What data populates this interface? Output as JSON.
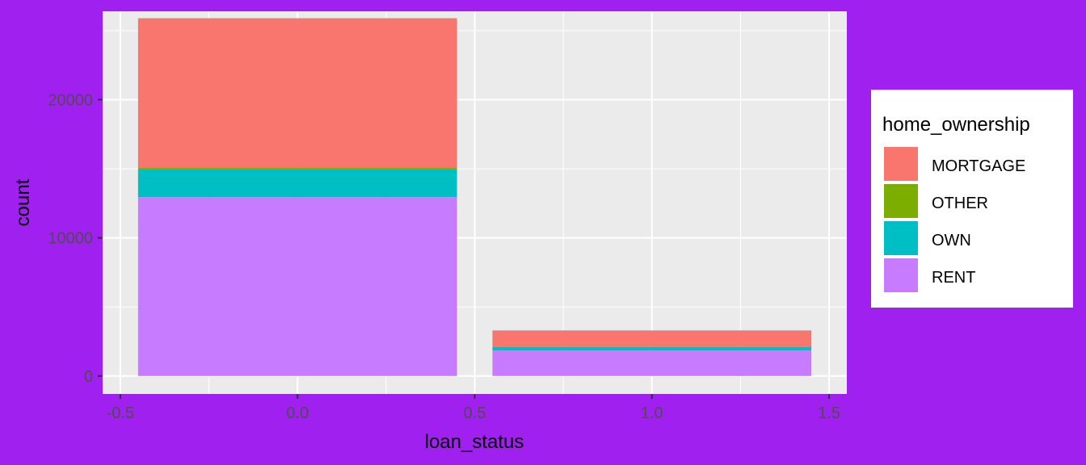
{
  "chart_data": {
    "type": "bar",
    "stacked": true,
    "xlabel": "loan_status",
    "ylabel": "count",
    "xlim": [
      -0.55,
      1.55
    ],
    "ylim": [
      -1300,
      26400
    ],
    "x_ticks": [
      -0.5,
      0.0,
      0.5,
      1.0,
      1.5
    ],
    "x_tick_labels": [
      "-0.5",
      "0.0",
      "0.5",
      "1.0",
      "1.5"
    ],
    "y_ticks": [
      0,
      10000,
      20000
    ],
    "y_tick_labels": [
      "0",
      "10000",
      "20000"
    ],
    "bar_width": 0.9,
    "categories": [
      0,
      1
    ],
    "series": [
      {
        "name": "RENT",
        "color": "#C77CFF",
        "values": [
          12950,
          1850
        ]
      },
      {
        "name": "OWN",
        "color": "#00BFC4",
        "values": [
          2000,
          250
        ]
      },
      {
        "name": "OTHER",
        "color": "#7CAE00",
        "values": [
          150,
          20
        ]
      },
      {
        "name": "MORTGAGE",
        "color": "#F8766D",
        "values": [
          10800,
          1180
        ]
      }
    ],
    "legend": {
      "title": "home_ownership",
      "position": "right",
      "entries": [
        {
          "label": "MORTGAGE",
          "color": "#F8766D"
        },
        {
          "label": "OTHER",
          "color": "#7CAE00"
        },
        {
          "label": "OWN",
          "color": "#00BFC4"
        },
        {
          "label": "RENT",
          "color": "#C77CFF"
        }
      ]
    },
    "grid": true,
    "panel_background": "#EBEBEB",
    "page_background": "#A020F0"
  }
}
